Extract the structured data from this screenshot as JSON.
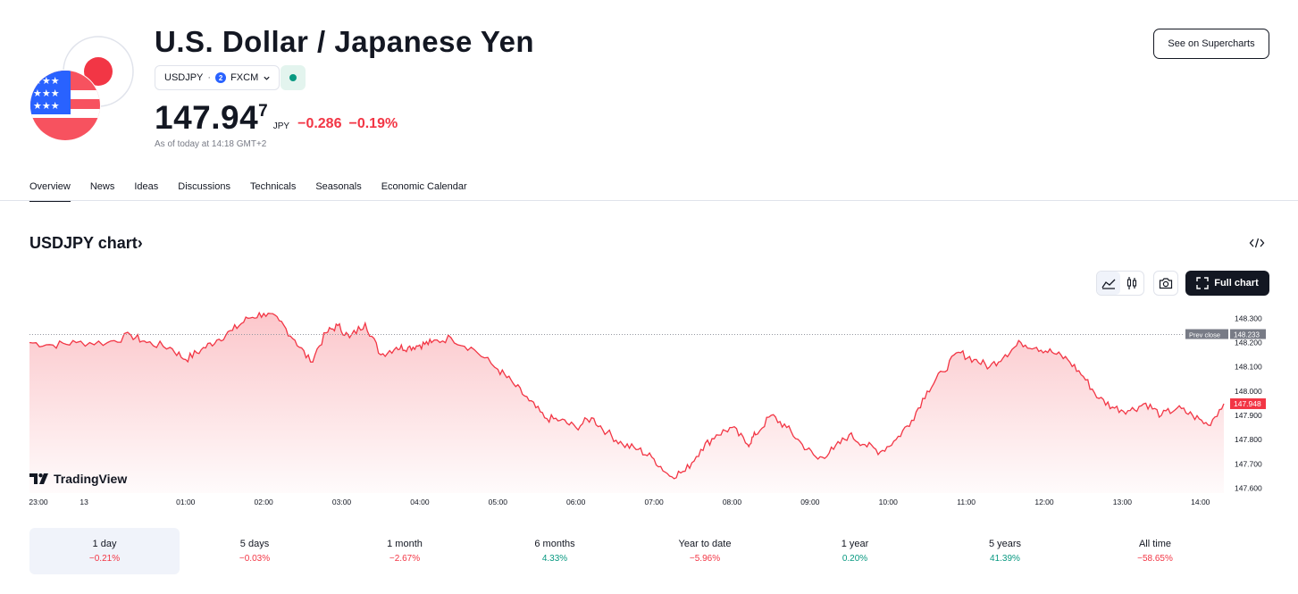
{
  "header": {
    "title": "U.S. Dollar / Japanese Yen",
    "symbol": "USDJPY",
    "exchange": "FXCM",
    "exchange_icon_letter": "2",
    "price_main": "147.94",
    "price_sup": "7",
    "currency": "JPY",
    "change": "−0.286",
    "change_pct": "−0.19%",
    "as_of": "As of today at 14:18 GMT+2",
    "see_button": "See on Supercharts",
    "market_status_color": "#089981"
  },
  "tabs": [
    "Overview",
    "News",
    "Ideas",
    "Discussions",
    "Technicals",
    "Seasonals",
    "Economic Calendar"
  ],
  "chart_section": {
    "title": "USDJPY chart",
    "title_arrow": "›",
    "full_chart_label": "Full chart",
    "brand": "TradingView",
    "icons": {
      "embed": "code-icon",
      "line_style": "area-chart-icon",
      "candle_style": "candles-icon",
      "snapshot": "camera-icon",
      "fullscreen": "expand-icon"
    }
  },
  "chart_data": {
    "type": "area",
    "color": "#f23645",
    "ylim": [
      147.58,
      148.36
    ],
    "y_ticks": [
      "148.300",
      "148.200",
      "148.100",
      "148.000",
      "147.900",
      "147.800",
      "147.700",
      "147.600"
    ],
    "y_tick_values": [
      148.3,
      148.2,
      148.1,
      148.0,
      147.9,
      147.8,
      147.7,
      147.6
    ],
    "x_ticks": [
      "23:00",
      "13",
      "01:00",
      "02:00",
      "03:00",
      "04:00",
      "05:00",
      "06:00",
      "07:00",
      "08:00",
      "09:00",
      "10:00",
      "11:00",
      "12:00",
      "13:00",
      "14:00"
    ],
    "x_tick_hours": [
      0,
      0.7,
      2,
      3,
      4,
      5,
      6,
      7,
      8,
      9,
      10,
      11,
      12,
      13,
      14,
      15
    ],
    "x_hours": [
      0,
      0.3,
      0.6,
      1.0,
      1.3,
      1.5,
      1.8,
      2.0,
      2.2,
      2.4,
      2.6,
      2.8,
      3.0,
      3.2,
      3.4,
      3.6,
      3.8,
      3.95,
      4.1,
      4.3,
      4.5,
      4.7,
      4.85,
      5.0,
      5.15,
      5.4,
      5.7,
      6.0,
      6.2,
      6.4,
      6.6,
      6.8,
      7.0,
      7.2,
      7.4,
      7.6,
      7.8,
      8.0,
      8.2,
      8.4,
      8.6,
      8.8,
      9.0,
      9.2,
      9.3,
      9.5,
      9.7,
      9.9,
      10.1,
      10.3,
      10.5,
      10.7,
      10.9,
      11.1,
      11.3,
      11.5,
      11.7,
      11.9,
      12.1,
      12.3,
      12.5,
      12.7,
      12.9,
      13.1,
      13.3,
      13.5,
      13.7,
      13.9,
      14.1,
      14.3,
      14.5,
      14.7,
      14.9,
      15.1,
      15.3
    ],
    "values": [
      148.2,
      148.19,
      148.2,
      148.2,
      148.23,
      148.2,
      148.18,
      148.13,
      148.17,
      148.21,
      148.25,
      148.3,
      148.32,
      148.29,
      148.21,
      148.12,
      148.24,
      148.27,
      148.22,
      148.28,
      148.15,
      148.18,
      148.18,
      148.19,
      148.2,
      148.22,
      148.17,
      148.09,
      148.03,
      147.96,
      147.89,
      147.88,
      147.85,
      147.89,
      147.83,
      147.78,
      147.76,
      147.72,
      147.65,
      147.67,
      147.76,
      147.82,
      147.85,
      147.78,
      147.82,
      147.9,
      147.85,
      147.78,
      147.72,
      147.76,
      147.82,
      147.78,
      147.75,
      147.8,
      147.88,
      148.0,
      148.08,
      148.16,
      148.13,
      148.1,
      148.15,
      148.2,
      148.18,
      148.16,
      148.13,
      148.06,
      147.97,
      147.93,
      147.92,
      147.95,
      147.9,
      147.93,
      147.9,
      147.86,
      147.948
    ],
    "prev_close": 148.233,
    "prev_close_label": "Prev close",
    "prev_close_text": "148.233",
    "last_value_text": "147.948",
    "grid": false
  },
  "periods": [
    {
      "label": "1 day",
      "value": "−0.21%",
      "sign": "neg"
    },
    {
      "label": "5 days",
      "value": "−0.03%",
      "sign": "neg"
    },
    {
      "label": "1 month",
      "value": "−2.67%",
      "sign": "neg"
    },
    {
      "label": "6 months",
      "value": "4.33%",
      "sign": "pos"
    },
    {
      "label": "Year to date",
      "value": "−5.96%",
      "sign": "neg"
    },
    {
      "label": "1 year",
      "value": "0.20%",
      "sign": "pos"
    },
    {
      "label": "5 years",
      "value": "41.39%",
      "sign": "pos"
    },
    {
      "label": "All time",
      "value": "−58.65%",
      "sign": "neg"
    }
  ]
}
